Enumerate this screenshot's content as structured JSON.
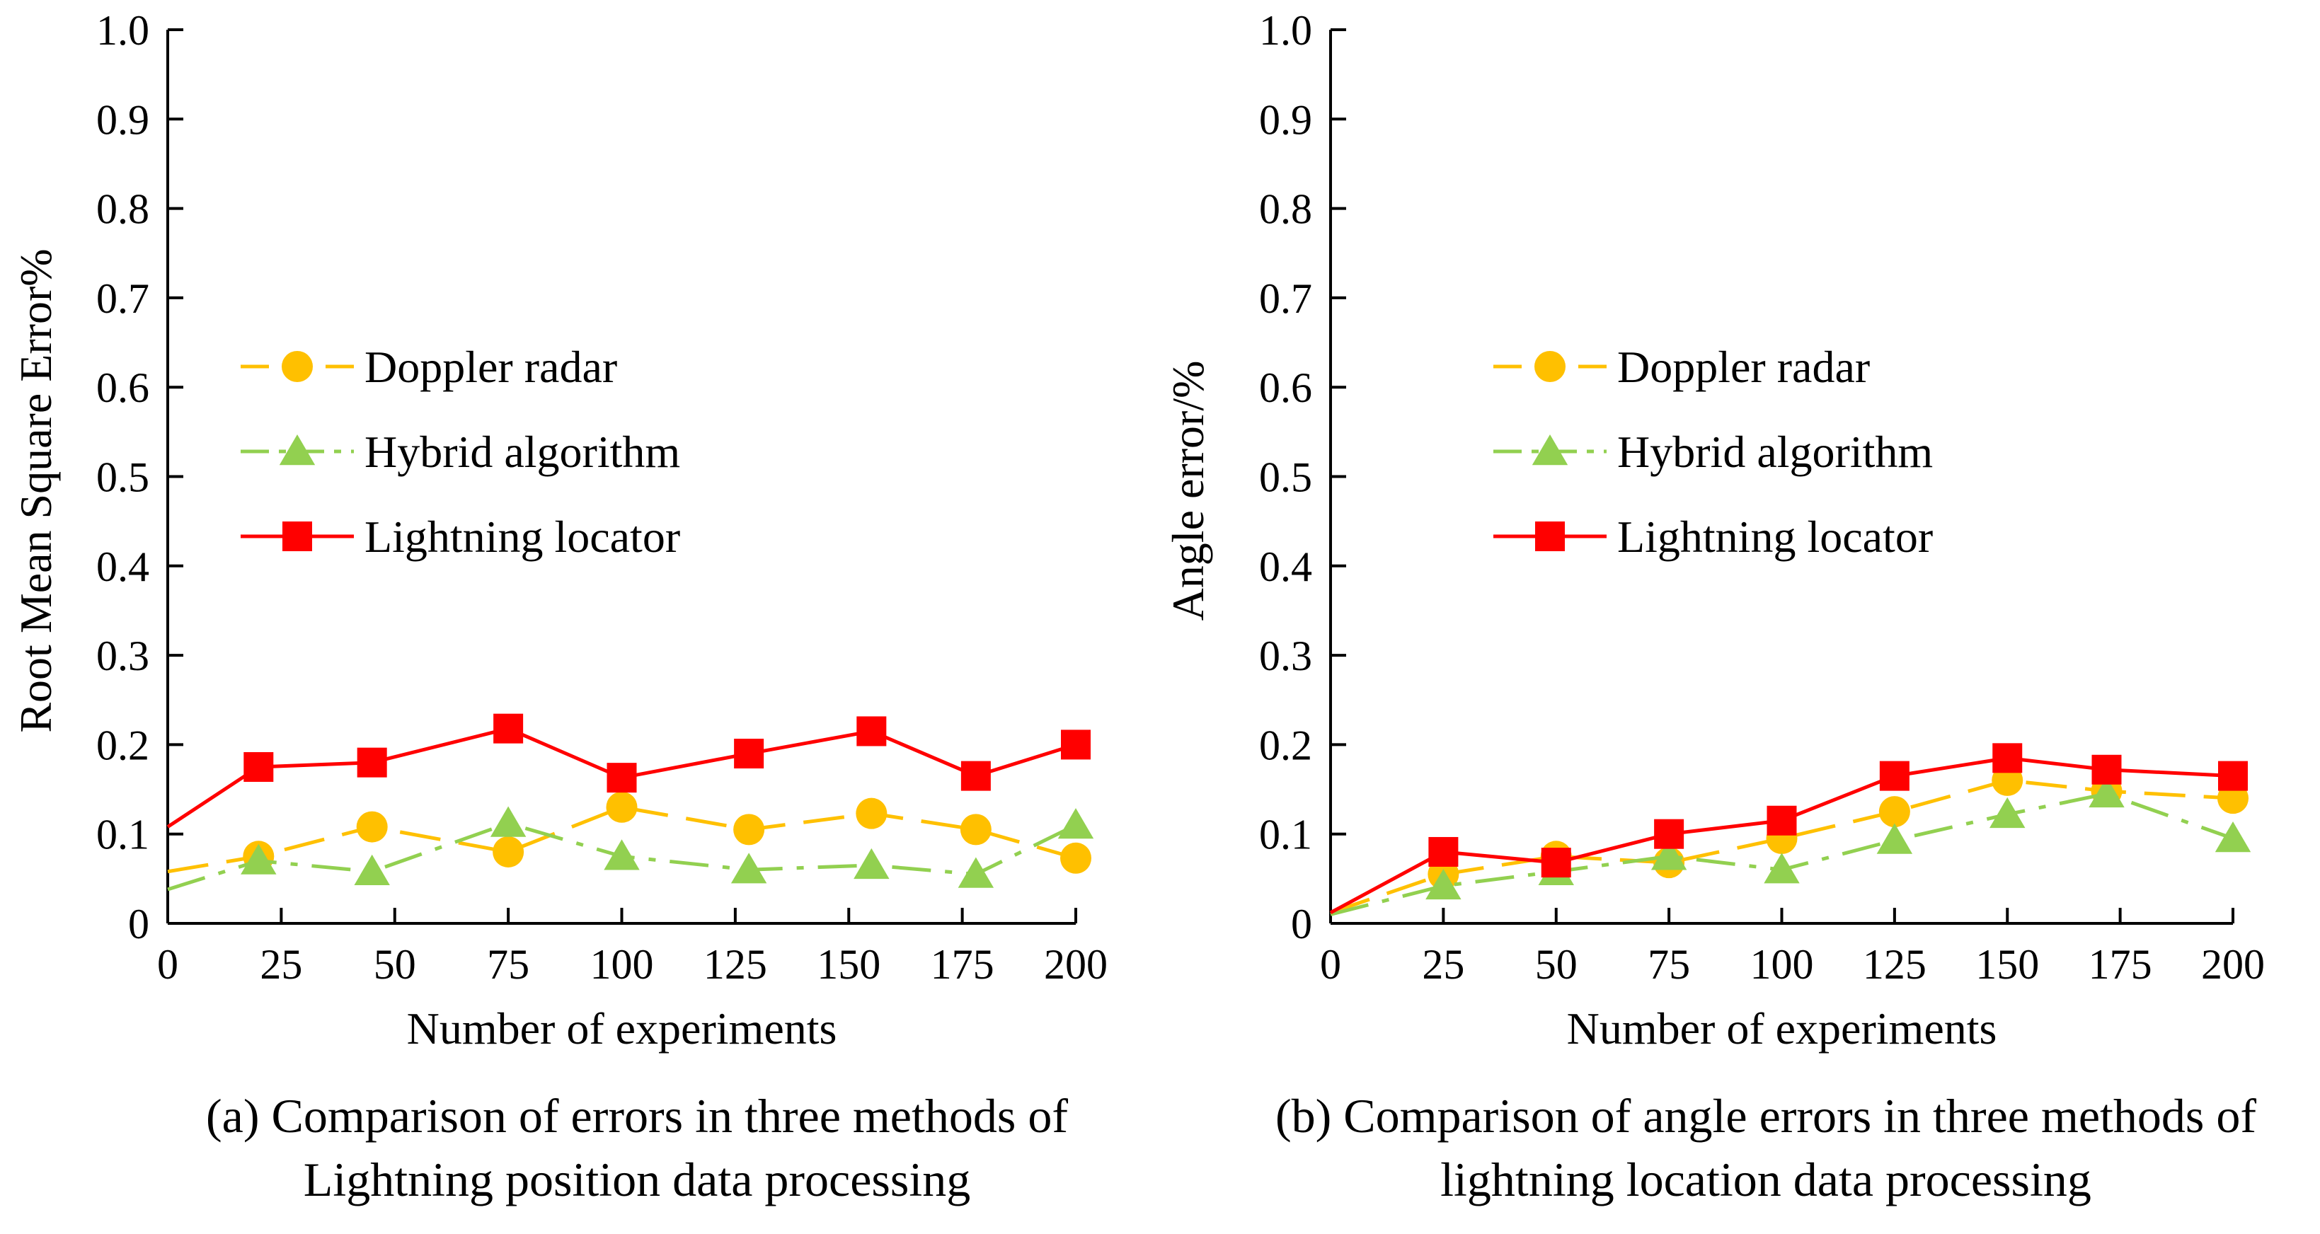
{
  "chart_data": [
    {
      "type": "line",
      "caption_lines": [
        "(a) Comparison of errors in three methods of",
        "Lightning position data processing"
      ],
      "xlabel": "Number of experiments",
      "ylabel": "Root Mean Square Error%",
      "xlim": [
        0,
        200
      ],
      "ylim": [
        0,
        1.0
      ],
      "xticks": [
        "0",
        "25",
        "50",
        "75",
        "100",
        "125",
        "150",
        "175",
        "200"
      ],
      "yticks": [
        "0",
        "0.1",
        "0.2",
        "0.3",
        "0.4",
        "0.5",
        "0.6",
        "0.7",
        "0.8",
        "0.9",
        "1.0"
      ],
      "grid": false,
      "legend_position": "center-left",
      "series": [
        {
          "name": "Doppler radar",
          "color": "#FFC000",
          "marker": "circle",
          "dash": "long-dash",
          "x": [
            0,
            20,
            45,
            75,
            100,
            128,
            155,
            178,
            200
          ],
          "y": [
            0.058,
            0.075,
            0.108,
            0.08,
            0.13,
            0.105,
            0.123,
            0.105,
            0.073
          ]
        },
        {
          "name": "Hybrid algorithm",
          "color": "#92D050",
          "marker": "triangle",
          "dash": "dash-dot",
          "x": [
            0,
            20,
            45,
            75,
            100,
            128,
            155,
            178,
            200
          ],
          "y": [
            0.038,
            0.07,
            0.058,
            0.112,
            0.075,
            0.06,
            0.065,
            0.055,
            0.11
          ]
        },
        {
          "name": "Lightning locator",
          "color": "#FF0000",
          "marker": "square",
          "dash": "solid",
          "x": [
            0,
            20,
            45,
            75,
            100,
            128,
            155,
            178,
            200
          ],
          "y": [
            0.108,
            0.175,
            0.18,
            0.218,
            0.163,
            0.19,
            0.215,
            0.165,
            0.2
          ]
        }
      ]
    },
    {
      "type": "line",
      "caption_lines": [
        "(b) Comparison of angle errors in three methods of",
        "lightning location data processing"
      ],
      "xlabel": "Number of experiments",
      "ylabel": "Angle error/%",
      "xlim": [
        0,
        200
      ],
      "ylim": [
        0,
        1.0
      ],
      "xticks": [
        "0",
        "25",
        "50",
        "75",
        "100",
        "125",
        "150",
        "175",
        "200"
      ],
      "yticks": [
        "0",
        "0.1",
        "0.2",
        "0.3",
        "0.4",
        "0.5",
        "0.6",
        "0.7",
        "0.8",
        "0.9",
        "1.0"
      ],
      "grid": false,
      "legend_position": "center-left",
      "series": [
        {
          "name": "Doppler radar",
          "color": "#FFC000",
          "marker": "circle",
          "dash": "long-dash",
          "x": [
            0,
            25,
            50,
            75,
            100,
            125,
            150,
            172,
            200
          ],
          "y": [
            0.012,
            0.055,
            0.075,
            0.068,
            0.095,
            0.125,
            0.16,
            0.148,
            0.14
          ]
        },
        {
          "name": "Hybrid algorithm",
          "color": "#92D050",
          "marker": "triangle",
          "dash": "dash-dot",
          "x": [
            0,
            25,
            50,
            75,
            100,
            125,
            150,
            172,
            200
          ],
          "y": [
            0.01,
            0.042,
            0.058,
            0.075,
            0.06,
            0.093,
            0.122,
            0.145,
            0.095
          ]
        },
        {
          "name": "Lightning locator",
          "color": "#FF0000",
          "marker": "square",
          "dash": "solid",
          "x": [
            0,
            25,
            50,
            75,
            100,
            125,
            150,
            172,
            200
          ],
          "y": [
            0.012,
            0.08,
            0.068,
            0.1,
            0.115,
            0.165,
            0.185,
            0.172,
            0.165
          ]
        }
      ]
    }
  ]
}
